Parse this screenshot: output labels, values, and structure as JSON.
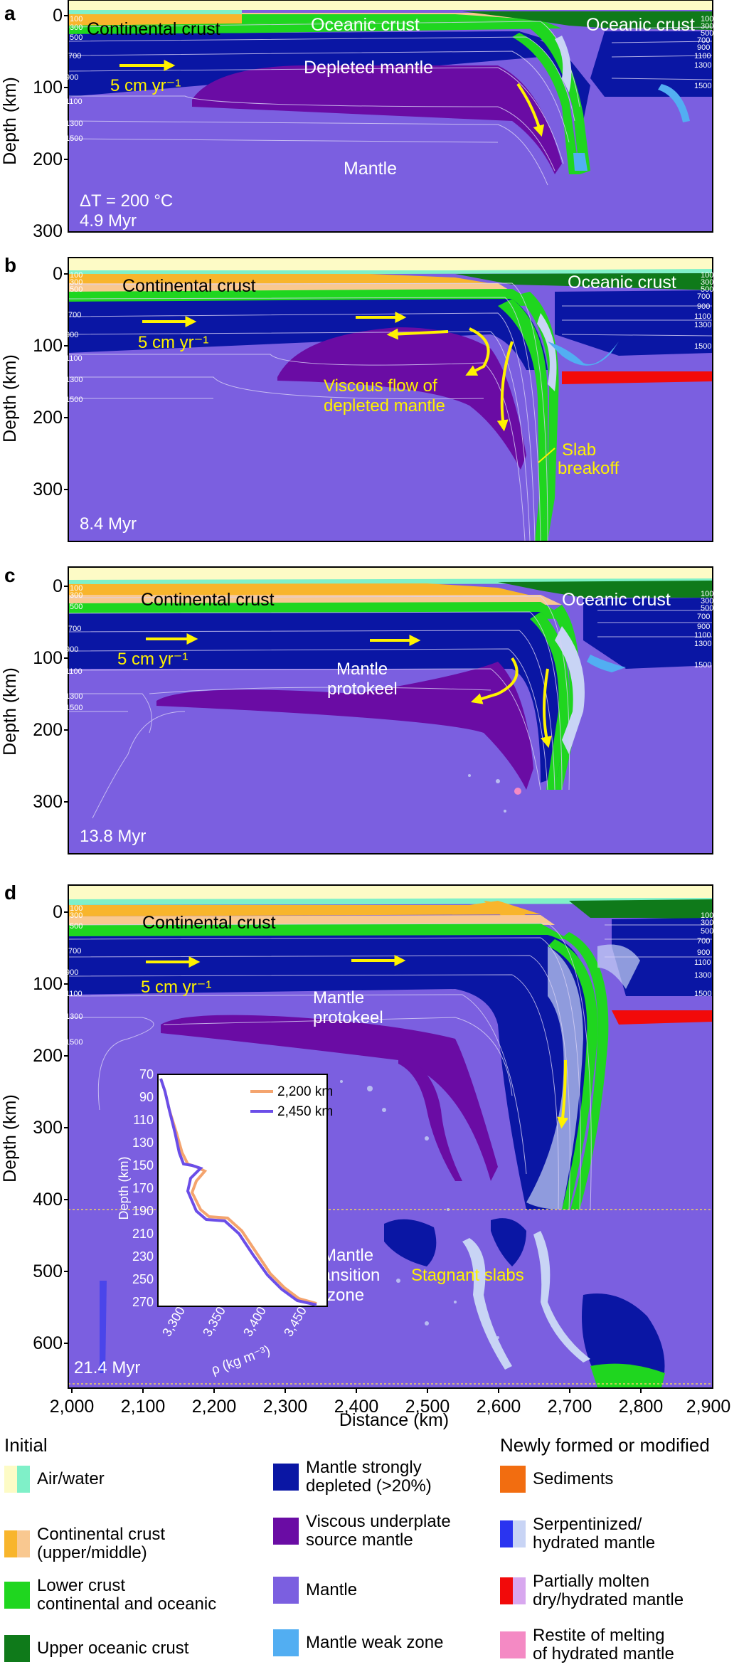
{
  "panels": [
    {
      "letter": "a",
      "time": "4.9 Myr",
      "delta_t": "ΔT = 200 °C",
      "y_ticks": [
        "0",
        "100",
        "200",
        "300"
      ],
      "labels": {
        "continental_crust": "Continental crust",
        "oceanic_crust_1": "Oceanic crust",
        "oceanic_crust_2": "Oceanic crust",
        "depleted_mantle": "Depleted mantle",
        "mantle": "Mantle",
        "velocity": "5 cm yr⁻¹"
      },
      "isotherms_left": [
        "100",
        "300",
        "500",
        "700",
        "900",
        "1100",
        "1300",
        "1500"
      ],
      "isotherms_right": [
        "100",
        "300",
        "500",
        "700",
        "900",
        "1100",
        "1300",
        "1500"
      ]
    },
    {
      "letter": "b",
      "time": "8.4 Myr",
      "y_ticks": [
        "0",
        "100",
        "200",
        "300"
      ],
      "labels": {
        "continental_crust": "Continental crust",
        "oceanic_crust": "Oceanic crust",
        "velocity": "5 cm yr⁻¹",
        "viscous_flow": [
          "Viscous flow of",
          "depleted mantle"
        ],
        "slab_breakoff": [
          "Slab",
          "breakoff"
        ]
      },
      "isotherms_left": [
        "100",
        "300",
        "500",
        "700",
        "900",
        "1100",
        "1300",
        "1500"
      ],
      "isotherms_right": [
        "100",
        "300",
        "500",
        "700",
        "900",
        "1100",
        "1300",
        "1500"
      ]
    },
    {
      "letter": "c",
      "time": "13.8 Myr",
      "y_ticks": [
        "0",
        "100",
        "200",
        "300"
      ],
      "labels": {
        "continental_crust": "Continental crust",
        "oceanic_crust": "Oceanic crust",
        "velocity": "5 cm yr⁻¹",
        "protokeel": [
          "Mantle",
          "protokeel"
        ]
      },
      "isotherms_left": [
        "100",
        "300",
        "500",
        "700",
        "900",
        "1100",
        "1300",
        "1500"
      ],
      "isotherms_right": [
        "100",
        "300",
        "500",
        "700",
        "900",
        "1100",
        "1300",
        "1500"
      ]
    },
    {
      "letter": "d",
      "time": "21.4 Myr",
      "y_ticks": [
        "0",
        "100",
        "200",
        "300",
        "400",
        "500",
        "600"
      ],
      "labels": {
        "continental_crust": "Continental crust",
        "velocity": "5 cm yr⁻¹",
        "protokeel": [
          "Mantle",
          "protokeel"
        ],
        "transition_zone": [
          "Mantle",
          "transition",
          "zone"
        ],
        "stagnant_slabs": "Stagnant slabs"
      },
      "isotherms_left": [
        "100",
        "300",
        "500",
        "700",
        "900",
        "1100",
        "1300",
        "1500"
      ],
      "isotherms_right": [
        "100",
        "300",
        "500",
        "700",
        "900",
        "1100",
        "1300",
        "1500"
      ],
      "inset": {
        "ylabel": "Depth (km)",
        "xlabel": "ρ (kg m⁻³)",
        "y_ticks": [
          "70",
          "90",
          "110",
          "130",
          "150",
          "170",
          "190",
          "210",
          "230",
          "250",
          "270"
        ],
        "x_ticks": [
          "3,300",
          "3,350",
          "3,400",
          "3,450"
        ],
        "legend": [
          "2,200 km",
          "2,450 km"
        ],
        "colors": [
          "#f4a46e",
          "#6b4ee8"
        ]
      }
    }
  ],
  "axis": {
    "ylabel": "Depth (km)",
    "xlabel": "Distance (km)",
    "x_ticks": [
      "2,000",
      "2,100",
      "2,200",
      "2,300",
      "2,400",
      "2,500",
      "2,600",
      "2,700",
      "2,800",
      "2,900"
    ]
  },
  "legend": {
    "initial_title": "Initial",
    "new_title": "Newly formed or modified",
    "items": [
      {
        "label": [
          "Air/water"
        ],
        "colors": [
          "#fdfbc6",
          "#7ff0c8"
        ]
      },
      {
        "label": [
          "Continental crust",
          "(upper/middle)"
        ],
        "colors": [
          "#f8b52c",
          "#f9c890"
        ]
      },
      {
        "label": [
          "Lower crust",
          "continental and oceanic"
        ],
        "colors": [
          "#1fd61f"
        ]
      },
      {
        "label": [
          "Upper oceanic crust"
        ],
        "colors": [
          "#0f7a1a"
        ]
      },
      {
        "label": [
          "Mantle strongly",
          "depleted (>20%)"
        ],
        "colors": [
          "#0a16a4"
        ]
      },
      {
        "label": [
          "Viscous underplate",
          "source mantle"
        ],
        "colors": [
          "#6a0ca4"
        ]
      },
      {
        "label": [
          "Mantle"
        ],
        "colors": [
          "#7b5fe0"
        ]
      },
      {
        "label": [
          "Mantle weak zone"
        ],
        "colors": [
          "#52aef2"
        ]
      },
      {
        "label": [
          "Sediments"
        ],
        "colors": [
          "#f26d10"
        ]
      },
      {
        "label": [
          "Serpentinized/",
          "hydrated mantle"
        ],
        "colors": [
          "#2a34f0",
          "#c8d4f5"
        ]
      },
      {
        "label": [
          "Partially molten",
          "dry/hydrated mantle"
        ],
        "colors": [
          "#f20a0a",
          "#d8a8ef"
        ]
      },
      {
        "label": [
          "Restite of melting",
          "of hydrated mantle"
        ],
        "colors": [
          "#f48ac4"
        ]
      }
    ]
  },
  "colors": {
    "air": "#fdfbc6",
    "water": "#7ff0c8",
    "cont_upper": "#f8b52c",
    "cont_middle": "#f9c890",
    "lower_crust": "#1fd61f",
    "upper_oceanic": "#0f7a1a",
    "depleted": "#0a16a4",
    "underplate": "#6a0ca4",
    "mantle": "#7b5fe0",
    "weak_zone": "#52aef2",
    "sediments": "#f26d10",
    "serpentinized": "#c8d4f5",
    "molten": "#f20a0a",
    "restite": "#f48ac4",
    "annotation": "#fff200"
  }
}
